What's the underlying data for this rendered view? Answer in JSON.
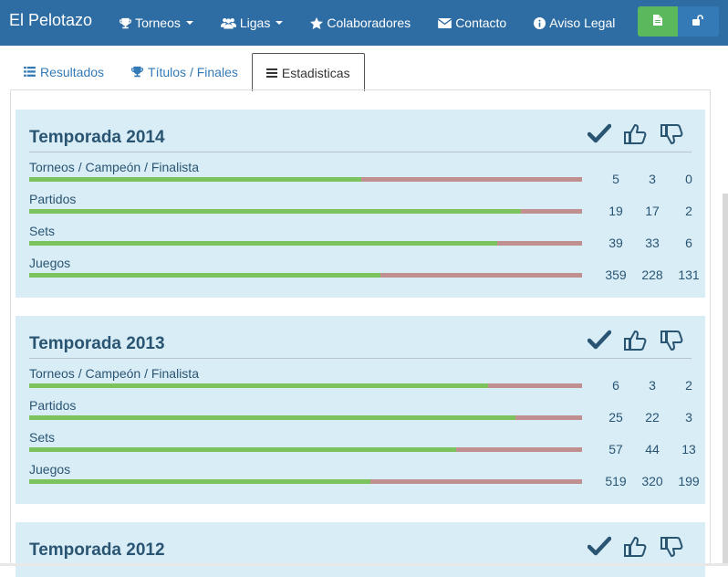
{
  "navbar": {
    "brand": "El Pelotazo",
    "items": [
      {
        "label": "Torneos",
        "icon": "trophy-icon",
        "dropdown": true
      },
      {
        "label": "Ligas",
        "icon": "users-icon",
        "dropdown": true
      },
      {
        "label": "Colaboradores",
        "icon": "star-icon",
        "dropdown": false
      },
      {
        "label": "Contacto",
        "icon": "envelope-icon",
        "dropdown": false
      },
      {
        "label": "Aviso Legal",
        "icon": "info-icon",
        "dropdown": false
      }
    ],
    "buttons": [
      {
        "icon": "document-icon",
        "color": "#5cb85c"
      },
      {
        "icon": "unlock-icon",
        "color": "#337ab7"
      }
    ]
  },
  "tabs": [
    {
      "label": "Resultados",
      "icon": "list-icon",
      "active": false
    },
    {
      "label": "Títulos / Finales",
      "icon": "trophy-icon",
      "active": false
    },
    {
      "label": "Estadisticas",
      "icon": "menu-icon",
      "active": true
    }
  ],
  "seasons": [
    {
      "title": "Temporada 2014",
      "stats": [
        {
          "label": "Torneos / Campeón / Finalista",
          "total": "5",
          "won": "3",
          "lost": "0",
          "won_ratio": 0.6
        },
        {
          "label": "Partidos",
          "total": "19",
          "won": "17",
          "lost": "2",
          "won_ratio": 0.89
        },
        {
          "label": "Sets",
          "total": "39",
          "won": "33",
          "lost": "6",
          "won_ratio": 0.846
        },
        {
          "label": "Juegos",
          "total": "359",
          "won": "228",
          "lost": "131",
          "won_ratio": 0.635
        }
      ]
    },
    {
      "title": "Temporada 2013",
      "stats": [
        {
          "label": "Torneos / Campeón / Finalista",
          "total": "6",
          "won": "3",
          "lost": "2",
          "won_ratio": 0.83
        },
        {
          "label": "Partidos",
          "total": "25",
          "won": "22",
          "lost": "3",
          "won_ratio": 0.88
        },
        {
          "label": "Sets",
          "total": "57",
          "won": "44",
          "lost": "13",
          "won_ratio": 0.772
        },
        {
          "label": "Juegos",
          "total": "519",
          "won": "320",
          "lost": "199",
          "won_ratio": 0.617
        }
      ]
    },
    {
      "title": "Temporada 2012",
      "stats": []
    }
  ],
  "colors": {
    "navbar": "#2e6da4",
    "panel": "#d9edf7",
    "bar_won": "#7cc25d",
    "bar_lost": "#c09090",
    "text": "#2a5572"
  }
}
